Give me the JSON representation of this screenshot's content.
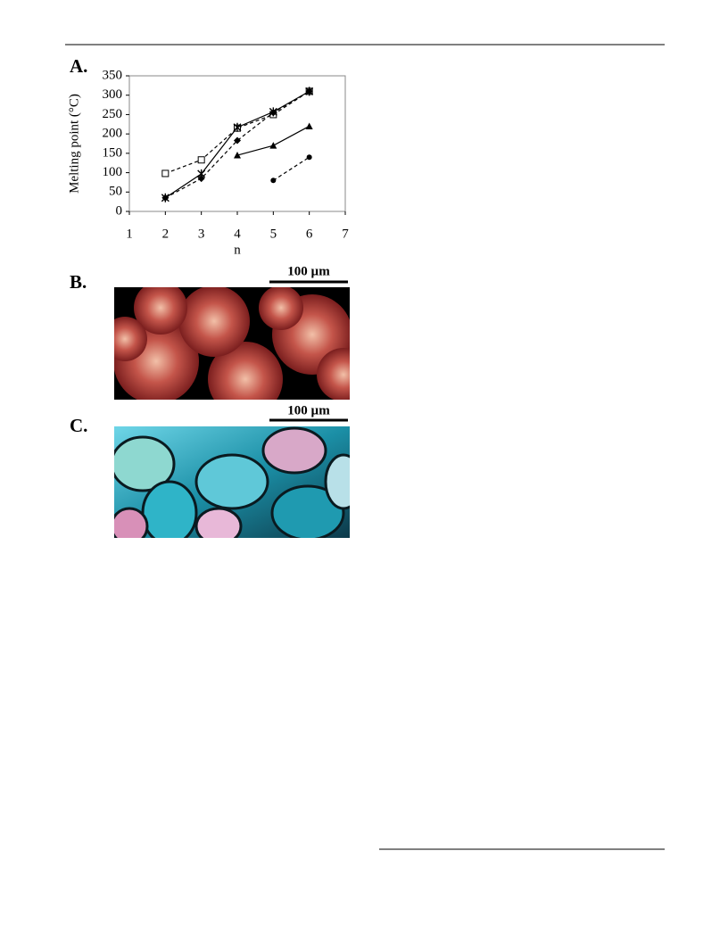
{
  "chart_data": {
    "type": "line",
    "panel_label": "A.",
    "y_label": "Melting point (°C)",
    "x_label": "n",
    "x": [
      2,
      3,
      4,
      5,
      6
    ],
    "series": [
      {
        "color": "#000000",
        "marker": "open-square",
        "dash": true,
        "values": [
          98,
          133,
          215,
          250,
          310
        ]
      },
      {
        "color": "#000000",
        "marker": "star",
        "dash": false,
        "values": [
          35,
          97,
          217,
          257,
          310
        ]
      },
      {
        "color": "#000000",
        "marker": "diamond",
        "dash": true,
        "values": [
          35,
          85,
          183,
          255,
          310
        ]
      },
      {
        "color": "#000000",
        "marker": "triangle",
        "dash": false,
        "values": [
          null,
          null,
          145,
          170,
          220
        ]
      },
      {
        "color": "#000000",
        "marker": "circle",
        "dash": true,
        "values": [
          null,
          null,
          null,
          80,
          140
        ]
      }
    ],
    "xlim": [
      1,
      7
    ],
    "xticks": [
      1,
      2,
      3,
      4,
      5,
      6,
      7
    ],
    "ylim": [
      0,
      350
    ],
    "yticks": [
      0,
      50,
      100,
      150,
      200,
      250,
      300,
      350
    ]
  },
  "panels": [
    {
      "label": "B.",
      "scale_bar": "100 µm"
    },
    {
      "label": "C.",
      "scale_bar": "100 µm"
    }
  ]
}
